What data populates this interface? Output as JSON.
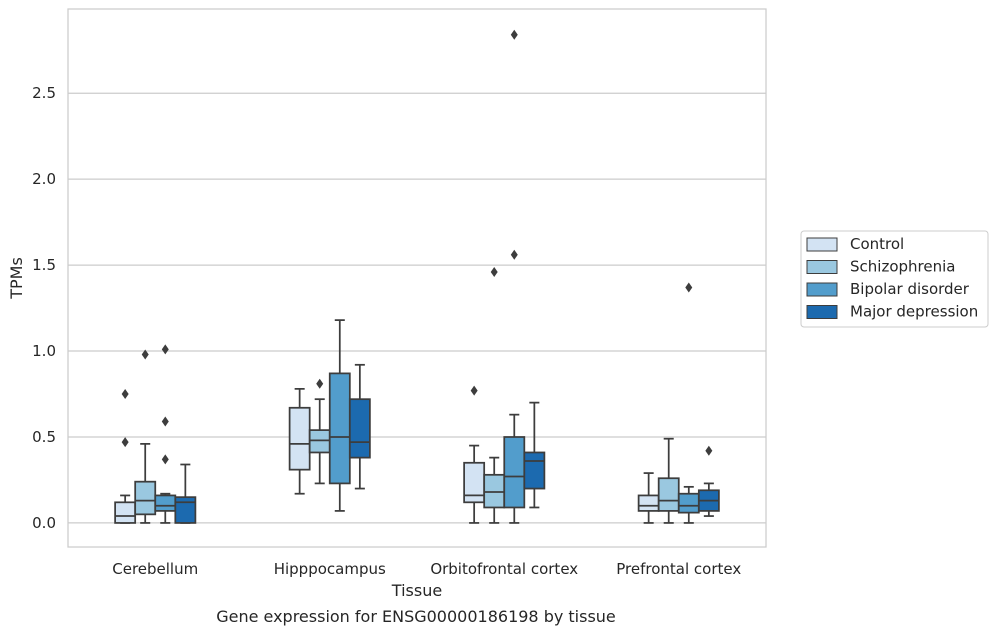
{
  "caption": "Gene expression for ENSG00000186198 by tissue",
  "chart_data": {
    "type": "box",
    "xlabel": "Tissue",
    "ylabel": "TPMs",
    "ylim": [
      -0.14,
      2.99
    ],
    "yticks": [
      0.0,
      0.5,
      1.0,
      1.5,
      2.0,
      2.5
    ],
    "ytick_labels": [
      "0.0",
      "0.5",
      "1.0",
      "1.5",
      "2.0",
      "2.5"
    ],
    "grid": "horizontal",
    "legend_position": "right",
    "categories": [
      "Cerebellum",
      "Hipppocampus",
      "Orbitofrontal cortex",
      "Prefrontal cortex"
    ],
    "series": [
      {
        "name": "Control",
        "color": "#d3e3f3",
        "boxes": [
          {
            "whislo": 0.0,
            "q1": 0.0,
            "med": 0.04,
            "q3": 0.12,
            "whishi": 0.16,
            "fliers": [
              0.47,
              0.75
            ]
          },
          {
            "whislo": 0.17,
            "q1": 0.31,
            "med": 0.46,
            "q3": 0.67,
            "whishi": 0.78,
            "fliers": []
          },
          {
            "whislo": 0.0,
            "q1": 0.12,
            "med": 0.16,
            "q3": 0.35,
            "whishi": 0.45,
            "fliers": [
              0.77
            ]
          },
          {
            "whislo": 0.0,
            "q1": 0.07,
            "med": 0.1,
            "q3": 0.16,
            "whishi": 0.29,
            "fliers": []
          }
        ]
      },
      {
        "name": "Schizophrenia",
        "color": "#9ac8e0",
        "boxes": [
          {
            "whislo": 0.0,
            "q1": 0.05,
            "med": 0.13,
            "q3": 0.24,
            "whishi": 0.46,
            "fliers": [
              0.98
            ]
          },
          {
            "whislo": 0.23,
            "q1": 0.41,
            "med": 0.48,
            "q3": 0.54,
            "whishi": 0.72,
            "fliers": [
              0.81
            ]
          },
          {
            "whislo": 0.0,
            "q1": 0.09,
            "med": 0.18,
            "q3": 0.28,
            "whishi": 0.38,
            "fliers": [
              1.46
            ]
          },
          {
            "whislo": 0.0,
            "q1": 0.07,
            "med": 0.13,
            "q3": 0.26,
            "whishi": 0.49,
            "fliers": []
          }
        ]
      },
      {
        "name": "Bipolar disorder",
        "color": "#529dcc",
        "boxes": [
          {
            "whislo": 0.0,
            "q1": 0.07,
            "med": 0.1,
            "q3": 0.16,
            "whishi": 0.17,
            "fliers": [
              0.37,
              0.59,
              1.01
            ]
          },
          {
            "whislo": 0.07,
            "q1": 0.23,
            "med": 0.5,
            "q3": 0.87,
            "whishi": 1.18,
            "fliers": []
          },
          {
            "whislo": 0.0,
            "q1": 0.09,
            "med": 0.27,
            "q3": 0.5,
            "whishi": 0.63,
            "fliers": [
              1.56,
              2.84
            ]
          },
          {
            "whislo": 0.0,
            "q1": 0.06,
            "med": 0.1,
            "q3": 0.17,
            "whishi": 0.21,
            "fliers": [
              1.37
            ]
          }
        ]
      },
      {
        "name": "Major depression",
        "color": "#1c6aaf",
        "boxes": [
          {
            "whislo": 0.0,
            "q1": 0.0,
            "med": 0.12,
            "q3": 0.15,
            "whishi": 0.34,
            "fliers": []
          },
          {
            "whislo": 0.2,
            "q1": 0.38,
            "med": 0.47,
            "q3": 0.72,
            "whishi": 0.92,
            "fliers": []
          },
          {
            "whislo": 0.09,
            "q1": 0.2,
            "med": 0.36,
            "q3": 0.41,
            "whishi": 0.7,
            "fliers": []
          },
          {
            "whislo": 0.04,
            "q1": 0.07,
            "med": 0.13,
            "q3": 0.19,
            "whishi": 0.23,
            "fliers": [
              0.42
            ]
          }
        ]
      }
    ]
  }
}
